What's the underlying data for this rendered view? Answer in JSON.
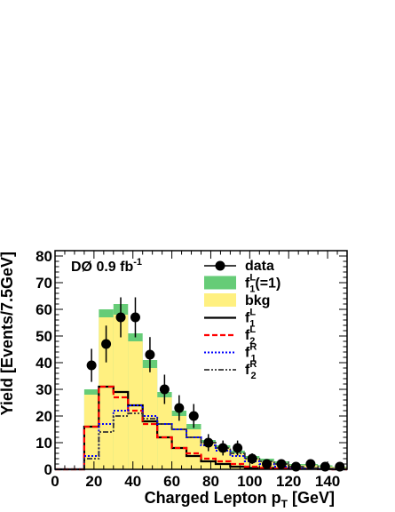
{
  "chart_data": {
    "type": "histogram",
    "experiment_label": "DØ 0.9 fb",
    "experiment_label_sup": "-1",
    "xlabel": "Charged Lepton p",
    "xlabel_sub": "T",
    "xlabel_unit": " [GeV]",
    "ylabel": "Yield [Events/7.5GeV]",
    "xlim": [
      0,
      150
    ],
    "ylim": [
      0,
      82
    ],
    "x_ticks": [
      0,
      20,
      40,
      60,
      80,
      100,
      120,
      140
    ],
    "y_ticks": [
      0,
      10,
      20,
      30,
      40,
      50,
      60,
      70,
      80
    ],
    "bin_edges": [
      0,
      15,
      22.5,
      30,
      37.5,
      45,
      52.5,
      60,
      67.5,
      75,
      82.5,
      90,
      97.5,
      105,
      112.5,
      120,
      127.5,
      135,
      142.5,
      150
    ],
    "colors": {
      "signal_fill": "#66cc77",
      "bkg_fill": "#fff080",
      "f1L_line": "#000000",
      "f2L_line": "#ff0000",
      "f1R_line": "#0000ff",
      "f2R_line": "#333333"
    },
    "stack": {
      "bkg_values": [
        0,
        28,
        57,
        58,
        48,
        38,
        27,
        20,
        15,
        10,
        8,
        6,
        4,
        3,
        2,
        1.5,
        1.5,
        1,
        0.8
      ],
      "signal_total_values": [
        0,
        30,
        60,
        62,
        51,
        41,
        29,
        22,
        17,
        11,
        9,
        7,
        5,
        4,
        3,
        2,
        2,
        1.5,
        1
      ]
    },
    "lines": [
      {
        "key": "f1L",
        "values": [
          0,
          16,
          31,
          29,
          24,
          18,
          12,
          8,
          5,
          3,
          2,
          1,
          0.5,
          0.5,
          0.3,
          0.2,
          0.2,
          0.1,
          0
        ]
      },
      {
        "key": "f2L",
        "values": [
          0,
          16,
          31,
          27,
          22,
          17,
          12,
          8,
          6,
          4,
          3,
          2,
          1,
          0.5,
          0.3,
          0.2,
          0.2,
          0.1,
          0
        ]
      },
      {
        "key": "f1R",
        "values": [
          0,
          5,
          17,
          22,
          24,
          20,
          17,
          15,
          12,
          9,
          7,
          5,
          3,
          2,
          1,
          0.5,
          0.3,
          0.2,
          0.1
        ]
      },
      {
        "key": "f2R",
        "values": [
          0,
          4,
          14,
          20,
          21,
          19,
          17,
          15,
          12,
          10,
          8,
          6,
          4,
          3,
          2,
          1,
          0.5,
          0.3,
          0.2
        ]
      }
    ],
    "data_points": {
      "x": [
        18.75,
        26.25,
        33.75,
        41.25,
        48.75,
        56.25,
        63.75,
        71.25,
        78.75,
        86.25,
        93.75,
        101.25,
        108.75,
        116.25,
        123.75,
        131.25,
        138.75,
        146.25
      ],
      "y": [
        39,
        47,
        57,
        57,
        43,
        30,
        23,
        20,
        10,
        8,
        8,
        4,
        2,
        2,
        1,
        2,
        1,
        1
      ],
      "err": [
        6.2,
        6.9,
        7.5,
        7.5,
        6.6,
        5.5,
        4.8,
        4.5,
        3.2,
        2.8,
        2.8,
        2.0,
        1.4,
        1.4,
        1.0,
        1.4,
        1.0,
        1.0
      ]
    },
    "legend": {
      "placement": "top-right",
      "entries": [
        {
          "key": "data",
          "label": "data",
          "sup": "",
          "sub": "",
          "tail": ""
        },
        {
          "key": "signal",
          "label": "f",
          "sup": "L",
          "sub": "1",
          "tail": "(=1)"
        },
        {
          "key": "bkg",
          "label": "bkg",
          "sup": "",
          "sub": "",
          "tail": ""
        },
        {
          "key": "f1L",
          "label": "f",
          "sup": "L",
          "sub": "1",
          "tail": ""
        },
        {
          "key": "f2L",
          "label": "f",
          "sup": "L",
          "sub": "2",
          "tail": ""
        },
        {
          "key": "f1R",
          "label": "f",
          "sup": "R",
          "sub": "1",
          "tail": ""
        },
        {
          "key": "f2R",
          "label": "f",
          "sup": "R",
          "sub": "2",
          "tail": ""
        }
      ]
    }
  }
}
